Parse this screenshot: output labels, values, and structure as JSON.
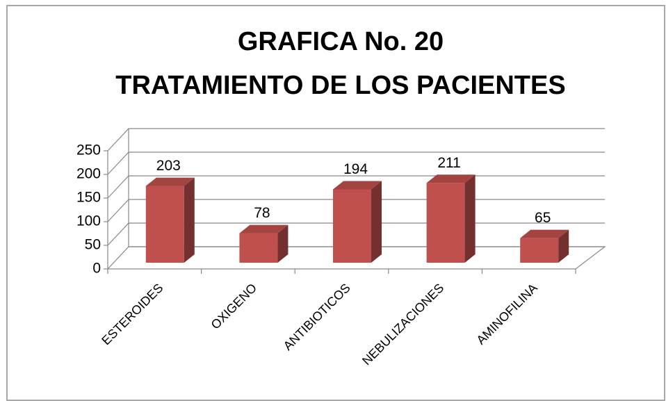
{
  "chart_data": {
    "type": "bar",
    "title": [
      "GRAFICA No. 20",
      "TRATAMIENTO DE LOS PACIENTES"
    ],
    "categories": [
      "ESTEROIDES",
      "OXIGENO",
      "ANTIBIOTICOS",
      "NEBULIZACIONES",
      "AMINOFILINA"
    ],
    "values": [
      203,
      78,
      194,
      211,
      65
    ],
    "color": "#c0504d",
    "ylim": [
      0,
      250
    ],
    "yticks": [
      0,
      50,
      100,
      150,
      200,
      250
    ],
    "grid": true
  }
}
